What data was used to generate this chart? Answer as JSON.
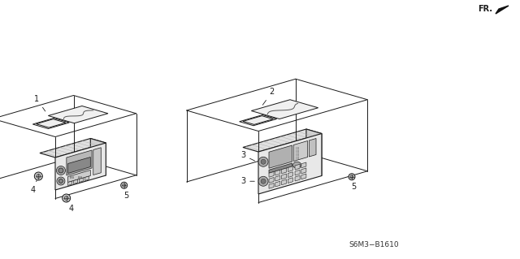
{
  "bg_color": "#ffffff",
  "lc": "#1a1a1a",
  "lc_thin": "#333333",
  "diagram_code": "S6M3−B1610",
  "figsize": [
    6.4,
    3.19
  ],
  "dpi": 100,
  "fr_text": "FR.",
  "label_fontsize": 7,
  "code_fontsize": 6.5
}
